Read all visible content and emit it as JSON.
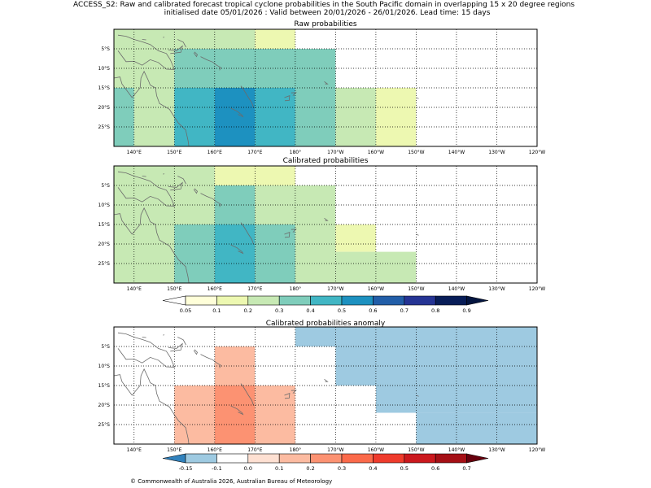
{
  "chart_data": {
    "type": "heatmap",
    "title_line1": "ACCESS_S2: Raw and calibrated forecast tropical cyclone probabilities in the South Pacific domain in overlapping 15 x 20 degree regions",
    "title_line2": "initialised date 05/01/2026 :  Valid between 20/01/2026 - 26/01/2026. Lead time: 15 days",
    "copyright": "© Commonwealth of Australia 2026, Australian Bureau of Meteorology",
    "lon_range": [
      135,
      240
    ],
    "lat_range": [
      0,
      -30
    ],
    "lon_ticks": [
      {
        "v": 140,
        "t": "140°E"
      },
      {
        "v": 150,
        "t": "150°E"
      },
      {
        "v": 160,
        "t": "160°E"
      },
      {
        "v": 170,
        "t": "170°E"
      },
      {
        "v": 180,
        "t": "180°"
      },
      {
        "v": 190,
        "t": "170°W"
      },
      {
        "v": 200,
        "t": "160°W"
      },
      {
        "v": 210,
        "t": "150°W"
      },
      {
        "v": 220,
        "t": "140°W"
      },
      {
        "v": 230,
        "t": "130°W"
      },
      {
        "v": 240,
        "t": "120°W"
      }
    ],
    "lat_ticks": [
      {
        "v": -5,
        "t": "5°S"
      },
      {
        "v": -10,
        "t": "10°S"
      },
      {
        "v": -15,
        "t": "15°S"
      },
      {
        "v": -20,
        "t": "20°S"
      },
      {
        "v": -25,
        "t": "25°S"
      }
    ],
    "maps": [
      {
        "title": "Raw probabilities",
        "cells": [
          {
            "lon": [
              135,
              150
            ],
            "lat": [
              0,
              -5
            ],
            "v": 0.2
          },
          {
            "lon": [
              150,
              170
            ],
            "lat": [
              0,
              -5
            ],
            "v": 0.2
          },
          {
            "lon": [
              170,
              180
            ],
            "lat": [
              0,
              -5
            ],
            "v": 0.1
          },
          {
            "lon": [
              135,
              150
            ],
            "lat": [
              -5,
              -15
            ],
            "v": 0.2
          },
          {
            "lon": [
              150,
              190
            ],
            "lat": [
              -5,
              -15
            ],
            "v": 0.3
          },
          {
            "lon": [
              135,
              140
            ],
            "lat": [
              -15,
              -30
            ],
            "v": 0.3
          },
          {
            "lon": [
              140,
              150
            ],
            "lat": [
              -15,
              -30
            ],
            "v": 0.2
          },
          {
            "lon": [
              150,
              160
            ],
            "lat": [
              -15,
              -30
            ],
            "v": 0.4
          },
          {
            "lon": [
              160,
              170
            ],
            "lat": [
              -15,
              -30
            ],
            "v": 0.5
          },
          {
            "lon": [
              170,
              180
            ],
            "lat": [
              -15,
              -30
            ],
            "v": 0.4
          },
          {
            "lon": [
              180,
              190
            ],
            "lat": [
              -15,
              -30
            ],
            "v": 0.3
          },
          {
            "lon": [
              190,
              200
            ],
            "lat": [
              -15,
              -30
            ],
            "v": 0.2
          },
          {
            "lon": [
              200,
              210
            ],
            "lat": [
              -15,
              -30
            ],
            "v": 0.1
          }
        ]
      },
      {
        "title": "Calibrated probabilities",
        "cells": [
          {
            "lon": [
              135,
              160
            ],
            "lat": [
              0,
              -15
            ],
            "v": 0.2
          },
          {
            "lon": [
              160,
              180
            ],
            "lat": [
              0,
              -5
            ],
            "v": 0.1
          },
          {
            "lon": [
              160,
              170
            ],
            "lat": [
              -5,
              -15
            ],
            "v": 0.3
          },
          {
            "lon": [
              170,
              190
            ],
            "lat": [
              -5,
              -15
            ],
            "v": 0.2
          },
          {
            "lon": [
              135,
              150
            ],
            "lat": [
              -15,
              -30
            ],
            "v": 0.2
          },
          {
            "lon": [
              150,
              160
            ],
            "lat": [
              -15,
              -30
            ],
            "v": 0.3
          },
          {
            "lon": [
              160,
              170
            ],
            "lat": [
              -15,
              -30
            ],
            "v": 0.4
          },
          {
            "lon": [
              170,
              180
            ],
            "lat": [
              -15,
              -30
            ],
            "v": 0.3
          },
          {
            "lon": [
              180,
              190
            ],
            "lat": [
              -15,
              -30
            ],
            "v": 0.2
          },
          {
            "lon": [
              190,
              200
            ],
            "lat": [
              -15,
              -22
            ],
            "v": 0.1
          },
          {
            "lon": [
              190,
              210
            ],
            "lat": [
              -22,
              -30
            ],
            "v": 0.2
          }
        ]
      },
      {
        "title": "Calibrated probabilities anomaly",
        "cells": [
          {
            "lon": [
              160,
              180
            ],
            "lat": [
              0,
              -5
            ],
            "v": -0.1
          },
          {
            "lon": [
              180,
              240
            ],
            "lat": [
              0,
              -5
            ],
            "v": -0.15
          },
          {
            "lon": [
              160,
              170
            ],
            "lat": [
              -5,
              -15
            ],
            "v": 0.1
          },
          {
            "lon": [
              190,
              240
            ],
            "lat": [
              -5,
              -15
            ],
            "v": -0.15
          },
          {
            "lon": [
              150,
              160
            ],
            "lat": [
              -15,
              -30
            ],
            "v": 0.1
          },
          {
            "lon": [
              160,
              170
            ],
            "lat": [
              -15,
              -30
            ],
            "v": 0.2
          },
          {
            "lon": [
              170,
              180
            ],
            "lat": [
              -15,
              -30
            ],
            "v": 0.1
          },
          {
            "lon": [
              190,
              200
            ],
            "lat": [
              -15,
              -22
            ],
            "v": -0.1
          },
          {
            "lon": [
              200,
              240
            ],
            "lat": [
              -15,
              -22
            ],
            "v": -0.15
          },
          {
            "lon": [
              200,
              210
            ],
            "lat": [
              -22,
              -30
            ],
            "v": -0.1
          },
          {
            "lon": [
              210,
              240
            ],
            "lat": [
              -22,
              -30
            ],
            "v": -0.15
          }
        ]
      }
    ],
    "colorbars": [
      {
        "ticks": [
          "0.05",
          "0.1",
          "0.2",
          "0.3",
          "0.4",
          "0.5",
          "0.6",
          "0.7",
          "0.8",
          "0.9"
        ],
        "colors": [
          "#ffffd9",
          "#edf8b1",
          "#c7e9b4",
          "#7fcdbb",
          "#41b6c4",
          "#1d91c0",
          "#225ea8",
          "#253494",
          "#081d58"
        ],
        "under": "#ffffff",
        "over": "#041540"
      },
      {
        "ticks": [
          "-0.15",
          "-0.1",
          "0.0",
          "0.1",
          "0.2",
          "0.3",
          "0.4",
          "0.5",
          "0.6",
          "0.7"
        ],
        "colors": [
          "#9ecae1",
          "#ffffff",
          "#fee0d2",
          "#fcbba1",
          "#fc9272",
          "#fb6a4a",
          "#ef3b2c",
          "#cb181d",
          "#a50f15"
        ],
        "under": "#3182bd",
        "over": "#67000d"
      }
    ]
  }
}
